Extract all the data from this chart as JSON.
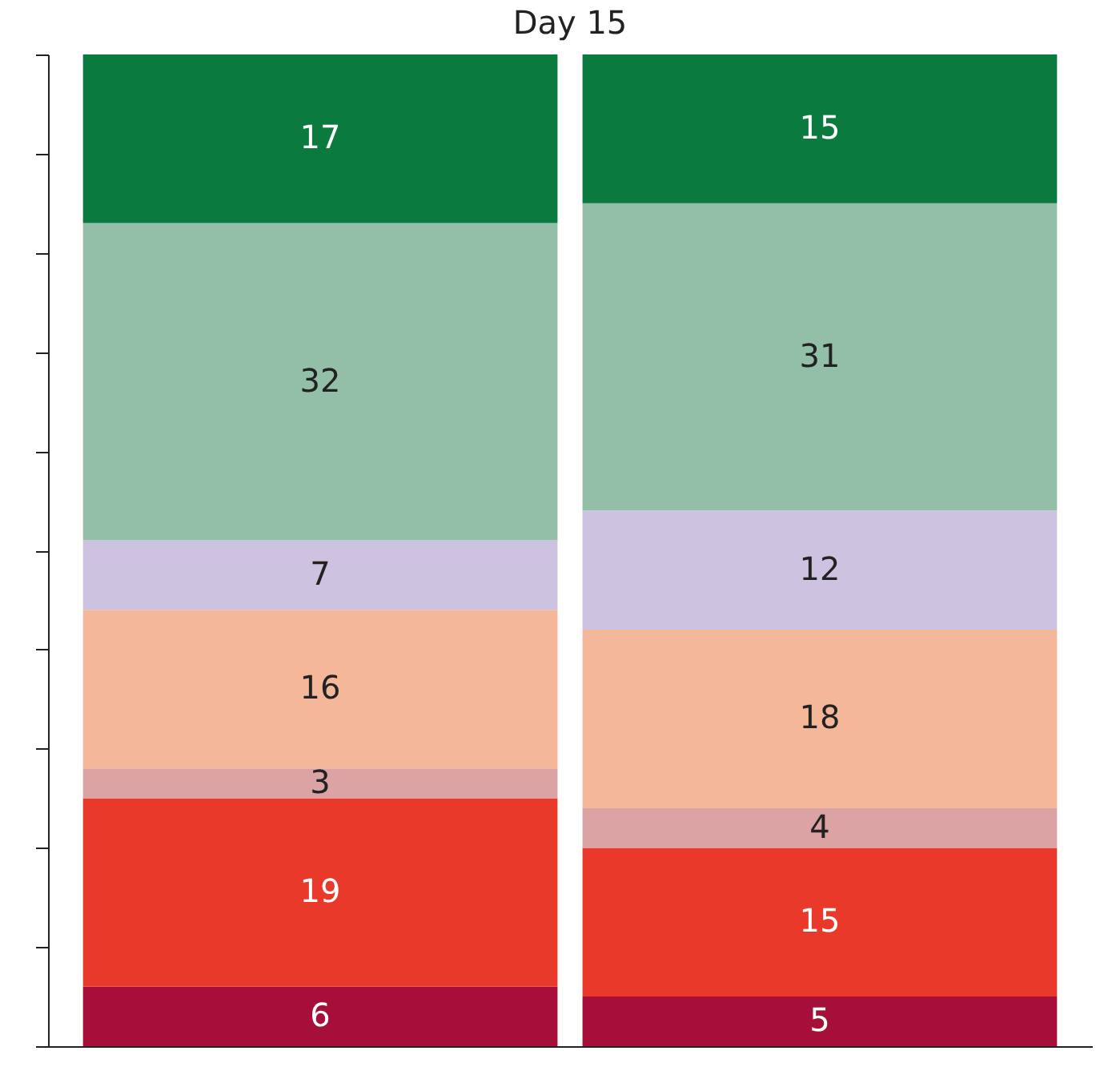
{
  "chart_data": {
    "type": "bar",
    "title": "Day 15",
    "categories": [
      null,
      null
    ],
    "stacked": true,
    "data_labels": true,
    "grid": false,
    "ylim": [
      0,
      100
    ],
    "yticks": [
      {
        "value": 0,
        "label": null
      },
      {
        "value": 10,
        "label": null
      },
      {
        "value": 20,
        "label": null
      },
      {
        "value": 30,
        "label": null
      },
      {
        "value": 40,
        "label": null
      },
      {
        "value": 50,
        "label": null
      },
      {
        "value": 60,
        "label": null
      },
      {
        "value": 70,
        "label": null
      },
      {
        "value": 80,
        "label": null
      },
      {
        "value": 90,
        "label": null
      },
      {
        "value": 100,
        "label": null
      }
    ],
    "series": [
      {
        "color": "#a50f3a",
        "values": [
          6,
          5
        ]
      },
      {
        "color": "#e8392a",
        "values": [
          19,
          15
        ]
      },
      {
        "color": "#dba3a3",
        "values": [
          3,
          4
        ]
      },
      {
        "color": "#f5b79a",
        "values": [
          16,
          18
        ]
      },
      {
        "color": "#cdc3e0",
        "values": [
          7,
          12
        ]
      },
      {
        "color": "#93bfa8",
        "values": [
          32,
          31
        ]
      },
      {
        "color": "#0b7a3e",
        "values": [
          17,
          15
        ]
      }
    ]
  }
}
